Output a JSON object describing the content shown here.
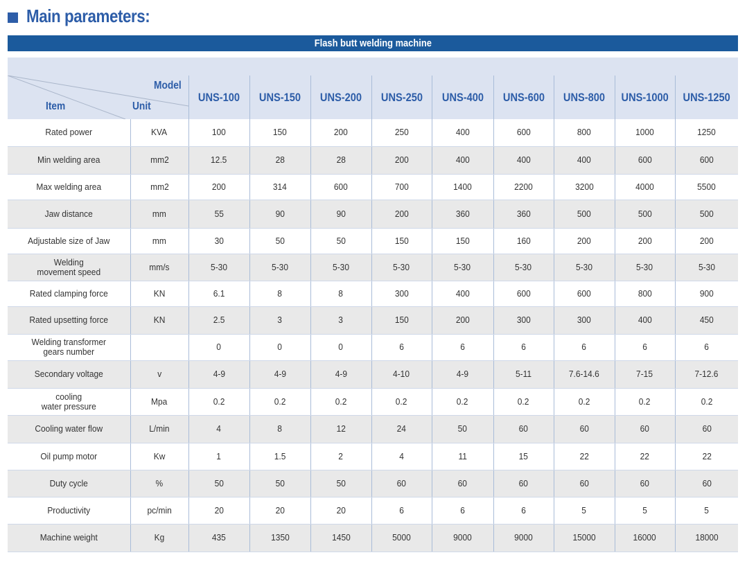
{
  "heading": {
    "title": "Main parameters:",
    "marker_color": "#2d5da8"
  },
  "banner": {
    "title": "Flash butt welding machine",
    "color": "#1b5a9c"
  },
  "table": {
    "header": {
      "model_label": "Model",
      "item_label": "Item",
      "unit_label": "Unit"
    },
    "models": [
      "UNS-100",
      "UNS-150",
      "UNS-200",
      "UNS-250",
      "UNS-400",
      "UNS-600",
      "UNS-800",
      "UNS-1000",
      "UNS-1250"
    ],
    "rows": [
      {
        "item": "Rated power",
        "unit": "KVA",
        "values": [
          "100",
          "150",
          "200",
          "250",
          "400",
          "600",
          "800",
          "1000",
          "1250"
        ]
      },
      {
        "item": "Min welding area",
        "unit": "mm2",
        "values": [
          "12.5",
          "28",
          "28",
          "200",
          "400",
          "400",
          "400",
          "600",
          "600"
        ]
      },
      {
        "item": "Max welding area",
        "unit": "mm2",
        "values": [
          "200",
          "314",
          "600",
          "700",
          "1400",
          "2200",
          "3200",
          "4000",
          "5500"
        ]
      },
      {
        "item": "Jaw distance",
        "unit": "mm",
        "values": [
          "55",
          "90",
          "90",
          "200",
          "360",
          "360",
          "500",
          "500",
          "500"
        ]
      },
      {
        "item": "Adjustable size of Jaw",
        "unit": "mm",
        "values": [
          "30",
          "50",
          "50",
          "150",
          "150",
          "160",
          "200",
          "200",
          "200"
        ]
      },
      {
        "item": "Welding\nmovement speed",
        "unit": "mm/s",
        "values": [
          "5-30",
          "5-30",
          "5-30",
          "5-30",
          "5-30",
          "5-30",
          "5-30",
          "5-30",
          "5-30"
        ]
      },
      {
        "item": "Rated clamping force",
        "unit": "KN",
        "values": [
          "6.1",
          "8",
          "8",
          "300",
          "400",
          "600",
          "600",
          "800",
          "900"
        ]
      },
      {
        "item": "Rated upsetting force",
        "unit": "KN",
        "values": [
          "2.5",
          "3",
          "3",
          "150",
          "200",
          "300",
          "300",
          "400",
          "450"
        ]
      },
      {
        "item": "Welding transformer\ngears number",
        "unit": "",
        "values": [
          "0",
          "0",
          "0",
          "6",
          "6",
          "6",
          "6",
          "6",
          "6"
        ]
      },
      {
        "item": "Secondary voltage",
        "unit": "v",
        "values": [
          "4-9",
          "4-9",
          "4-9",
          "4-10",
          "4-9",
          "5-11",
          "7.6-14.6",
          "7-15",
          "7-12.6"
        ]
      },
      {
        "item": "cooling\nwater pressure",
        "unit": "Mpa",
        "values": [
          "0.2",
          "0.2",
          "0.2",
          "0.2",
          "0.2",
          "0.2",
          "0.2",
          "0.2",
          "0.2"
        ]
      },
      {
        "item": "Cooling water flow",
        "unit": "L/min",
        "values": [
          "4",
          "8",
          "12",
          "24",
          "50",
          "60",
          "60",
          "60",
          "60"
        ]
      },
      {
        "item": "Oil pump motor",
        "unit": "Kw",
        "values": [
          "1",
          "1.5",
          "2",
          "4",
          "11",
          "15",
          "22",
          "22",
          "22"
        ]
      },
      {
        "item": "Duty cycle",
        "unit": "%",
        "values": [
          "50",
          "50",
          "50",
          "60",
          "60",
          "60",
          "60",
          "60",
          "60"
        ]
      },
      {
        "item": "Productivity",
        "unit": "pc/min",
        "values": [
          "20",
          "20",
          "20",
          "6",
          "6",
          "6",
          "5",
          "5",
          "5"
        ]
      },
      {
        "item": "Machine weight",
        "unit": "Kg",
        "values": [
          "435",
          "1350",
          "1450",
          "5000",
          "9000",
          "9000",
          "15000",
          "16000",
          "18000"
        ]
      }
    ]
  }
}
